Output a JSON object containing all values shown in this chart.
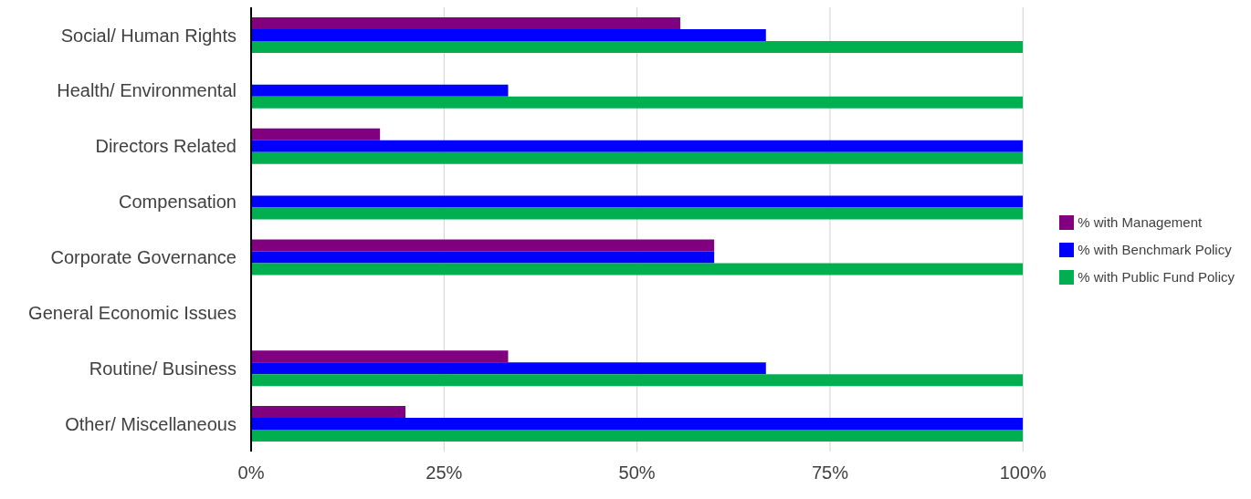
{
  "chart_data": {
    "type": "bar",
    "orientation": "horizontal",
    "categories": [
      "Social/ Human Rights",
      "Health/ Environmental",
      "Directors Related",
      "Compensation",
      "Corporate Governance",
      "General Economic Issues",
      "Routine/ Business",
      "Other/ Miscellaneous"
    ],
    "series": [
      {
        "name": "% with Management",
        "color": "#800080",
        "values": [
          55.6,
          0,
          16.7,
          0,
          60,
          null,
          33.3,
          20
        ]
      },
      {
        "name": "% with Benchmark Policy",
        "color": "#0000ff",
        "values": [
          66.7,
          33.3,
          100,
          100,
          60,
          null,
          66.7,
          100
        ]
      },
      {
        "name": "% with Public Fund Policy",
        "color": "#00b050",
        "values": [
          100,
          100,
          100,
          100,
          100,
          null,
          100,
          100
        ]
      }
    ],
    "xlim": [
      0,
      100
    ],
    "xticks": [
      {
        "value": 0,
        "label": "0%"
      },
      {
        "value": 25,
        "label": "25%"
      },
      {
        "value": 50,
        "label": "50%"
      },
      {
        "value": 75,
        "label": "75%"
      },
      {
        "value": 100,
        "label": "100%"
      }
    ],
    "grid": "x",
    "legend": "right"
  }
}
